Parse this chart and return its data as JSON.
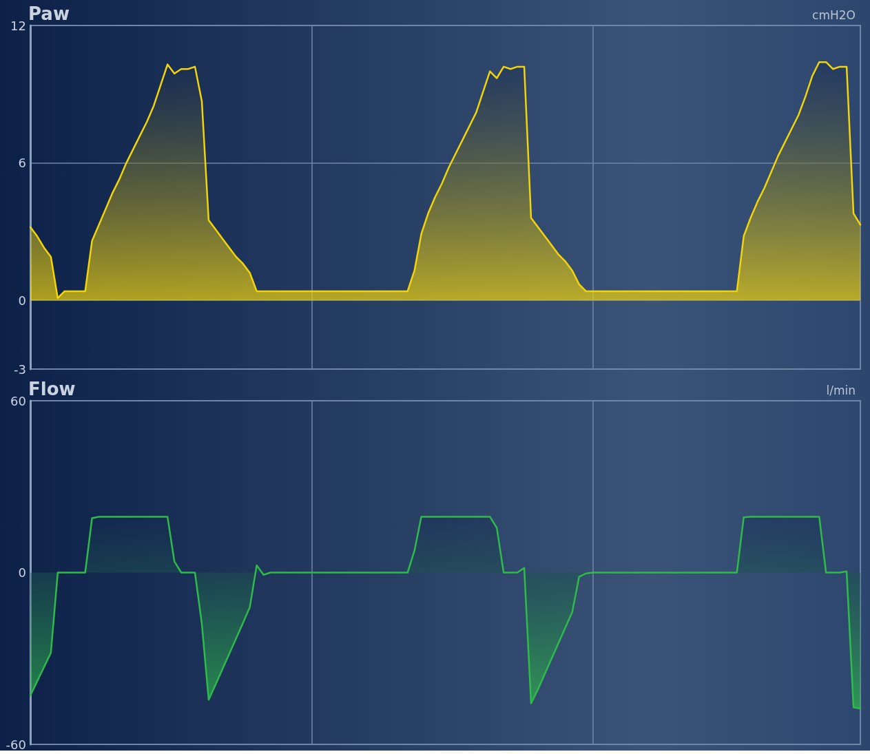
{
  "chart_data": [
    {
      "type": "area",
      "title": "Paw",
      "ylabel": "cmH2O",
      "categories": [
        null,
        null,
        null,
        null,
        null,
        null,
        null,
        null,
        null,
        null,
        null,
        null,
        null,
        null,
        null,
        null,
        null,
        null,
        null,
        null,
        null,
        null,
        null,
        null,
        null,
        null,
        null,
        null,
        null,
        null,
        null,
        null,
        null,
        null,
        null,
        null,
        null,
        null,
        null,
        null,
        null,
        null,
        null,
        null,
        null,
        null,
        null,
        null,
        null,
        null,
        null,
        null,
        null,
        null,
        null,
        null,
        null,
        null,
        null,
        null,
        null,
        null,
        null,
        null,
        null,
        null,
        null,
        null,
        null,
        null,
        null,
        null,
        null,
        null,
        null,
        null,
        null,
        null,
        null,
        null,
        null,
        null,
        null,
        null,
        null,
        null,
        null,
        null,
        null,
        null,
        null,
        null,
        null,
        null,
        null,
        null,
        null,
        null,
        null,
        null,
        null,
        null,
        null,
        null,
        null,
        null,
        null,
        null,
        null,
        null,
        null,
        null,
        null,
        null,
        null,
        null,
        null,
        null,
        null,
        null,
        null,
        null
      ],
      "series": [
        {
          "color": "#f2d40c",
          "values": [
            3.2,
            2.8,
            2.3,
            1.9,
            0.1,
            0.4,
            0.4,
            0.4,
            0.4,
            2.6,
            3.3,
            4.0,
            4.7,
            5.3,
            6.0,
            6.6,
            7.2,
            7.8,
            8.5,
            9.4,
            10.3,
            9.9,
            10.1,
            10.1,
            10.2,
            8.7,
            3.5,
            3.1,
            2.7,
            2.3,
            1.9,
            1.6,
            1.2,
            0.4,
            0.4,
            0.4,
            0.4,
            0.4,
            0.4,
            0.4,
            0.4,
            0.4,
            0.4,
            0.4,
            0.4,
            0.4,
            0.4,
            0.4,
            0.4,
            0.4,
            0.4,
            0.4,
            0.4,
            0.4,
            0.4,
            0.4,
            1.3,
            2.9,
            3.8,
            4.5,
            5.1,
            5.8,
            6.4,
            7.0,
            7.6,
            8.2,
            9.1,
            10.0,
            9.7,
            10.2,
            10.1,
            10.2,
            10.2,
            3.6,
            3.2,
            2.8,
            2.4,
            2.0,
            1.7,
            1.3,
            0.7,
            0.4,
            0.4,
            0.4,
            0.4,
            0.4,
            0.4,
            0.4,
            0.4,
            0.4,
            0.4,
            0.4,
            0.4,
            0.4,
            0.4,
            0.4,
            0.4,
            0.4,
            0.4,
            0.4,
            0.4,
            0.4,
            0.4,
            0.4,
            2.8,
            3.6,
            4.3,
            4.9,
            5.6,
            6.3,
            6.9,
            7.5,
            8.1,
            8.9,
            9.8,
            10.4,
            10.4,
            10.1,
            10.2,
            10.2,
            3.8,
            3.3
          ]
        }
      ],
      "ylim": [
        -3,
        12
      ],
      "yticks": [
        12,
        6,
        0,
        -3
      ],
      "grid": true,
      "tick_labels": "y"
    },
    {
      "type": "area",
      "title": "Flow",
      "ylabel": "l/min",
      "categories": [
        null,
        null,
        null,
        null,
        null,
        null,
        null,
        null,
        null,
        null,
        null,
        null,
        null,
        null,
        null,
        null,
        null,
        null,
        null,
        null,
        null,
        null,
        null,
        null,
        null,
        null,
        null,
        null,
        null,
        null,
        null,
        null,
        null,
        null,
        null,
        null,
        null,
        null,
        null,
        null,
        null,
        null,
        null,
        null,
        null,
        null,
        null,
        null,
        null,
        null,
        null,
        null,
        null,
        null,
        null,
        null,
        null,
        null,
        null,
        null,
        null,
        null,
        null,
        null,
        null,
        null,
        null,
        null,
        null,
        null,
        null,
        null,
        null,
        null,
        null,
        null,
        null,
        null,
        null,
        null,
        null,
        null,
        null,
        null,
        null,
        null,
        null,
        null,
        null,
        null,
        null,
        null,
        null,
        null,
        null,
        null,
        null,
        null,
        null,
        null,
        null,
        null,
        null,
        null,
        null,
        null,
        null,
        null,
        null,
        null,
        null,
        null,
        null,
        null,
        null,
        null,
        null,
        null,
        null,
        null,
        null,
        null
      ],
      "series": [
        {
          "color": "#2fba4a",
          "values": [
            -43,
            -38,
            -33,
            -28,
            0,
            0,
            0,
            0,
            0,
            19,
            19.5,
            19.5,
            19.5,
            19.5,
            19.5,
            19.5,
            19.5,
            19.5,
            19.5,
            19.5,
            19.5,
            3.9,
            0,
            0,
            0,
            -17.8,
            -44.4,
            -39.2,
            -33.8,
            -28.4,
            -23.0,
            -17.6,
            -12.1,
            2.5,
            -0.8,
            0,
            0,
            0,
            0,
            0,
            0,
            0,
            0,
            0,
            0,
            0,
            0,
            0,
            0,
            0,
            0,
            0,
            0,
            0,
            0,
            0,
            7.6,
            19.5,
            19.5,
            19.5,
            19.5,
            19.5,
            19.5,
            19.5,
            19.5,
            19.5,
            19.5,
            19.5,
            15.6,
            0,
            0,
            0,
            1.6,
            -45.7,
            -40.8,
            -35.4,
            -30.0,
            -24.6,
            -19.2,
            -13.8,
            -1.5,
            -0.3,
            0,
            0,
            0,
            0,
            0,
            0,
            0,
            0,
            0,
            0,
            0,
            0,
            0,
            0,
            0,
            0,
            0,
            0,
            0,
            0,
            0,
            0,
            19.3,
            19.5,
            19.5,
            19.5,
            19.5,
            19.5,
            19.5,
            19.5,
            19.5,
            19.5,
            19.5,
            19.5,
            0,
            0,
            0,
            0.4,
            -47.1,
            -47.5
          ]
        }
      ],
      "ylim": [
        -60,
        60
      ],
      "yticks": [
        60,
        0,
        -60
      ],
      "grid": "x",
      "tick_labels": "y"
    }
  ]
}
